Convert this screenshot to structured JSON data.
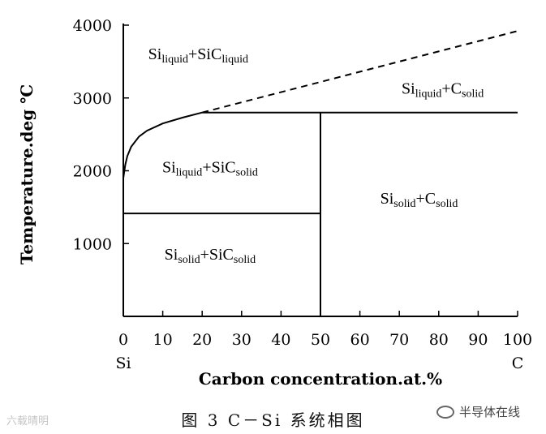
{
  "chart_data": {
    "type": "line",
    "title": "",
    "xlabel": "Carbon concentration.at.%",
    "ylabel": "Temperature.deg ℃",
    "xlim": [
      0,
      100
    ],
    "ylim": [
      0,
      4000
    ],
    "x_ticks": [
      "0",
      "10",
      "20",
      "30",
      "40",
      "50",
      "60",
      "70",
      "80",
      "90",
      "100"
    ],
    "y_ticks": [
      "1000",
      "2000",
      "3000",
      "4000"
    ],
    "x_end_labels": {
      "left": "Si",
      "right": "C"
    },
    "grid": false,
    "series": [
      {
        "style": "solid",
        "points": [
          [
            0,
            1900
          ],
          [
            0.5,
            2080
          ],
          [
            1,
            2200
          ],
          [
            2,
            2330
          ],
          [
            4,
            2470
          ],
          [
            6,
            2550
          ],
          [
            10,
            2650
          ],
          [
            15,
            2730
          ],
          [
            20,
            2800
          ]
        ]
      },
      {
        "style": "dashed",
        "points": [
          [
            20,
            2800
          ],
          [
            100,
            3920
          ]
        ]
      },
      {
        "style": "solid",
        "points": [
          [
            20,
            2800
          ],
          [
            100,
            2800
          ]
        ]
      },
      {
        "style": "solid",
        "points": [
          [
            50,
            0
          ],
          [
            50,
            2800
          ]
        ]
      },
      {
        "style": "solid",
        "points": [
          [
            0,
            1414
          ],
          [
            50,
            1414
          ]
        ]
      }
    ],
    "regions": [
      {
        "label": {
          "a": "Si",
          "a_sub": "liquid",
          "b": "+SiC",
          "b_sub": "liquid"
        },
        "x": 19,
        "y": 3530
      },
      {
        "label": {
          "a": "Si",
          "a_sub": "liquid",
          "b": "+C",
          "b_sub": "solid"
        },
        "x": 81,
        "y": 3060
      },
      {
        "label": {
          "a": "Si",
          "a_sub": "liquid",
          "b": "+SiC",
          "b_sub": "solid"
        },
        "x": 22,
        "y": 1980
      },
      {
        "label": {
          "a": "Si",
          "a_sub": "solid",
          "b": "+C",
          "b_sub": "solid"
        },
        "x": 75,
        "y": 1550
      },
      {
        "label": {
          "a": "Si",
          "a_sub": "solid",
          "b": "+SiC",
          "b_sub": "solid"
        },
        "x": 22,
        "y": 780
      }
    ]
  },
  "caption": "图 3  C－Si 系统相图",
  "watermarks": {
    "left": "六载晴明",
    "right": "半导体在线",
    "right_icon": "wechat-logo-icon"
  }
}
